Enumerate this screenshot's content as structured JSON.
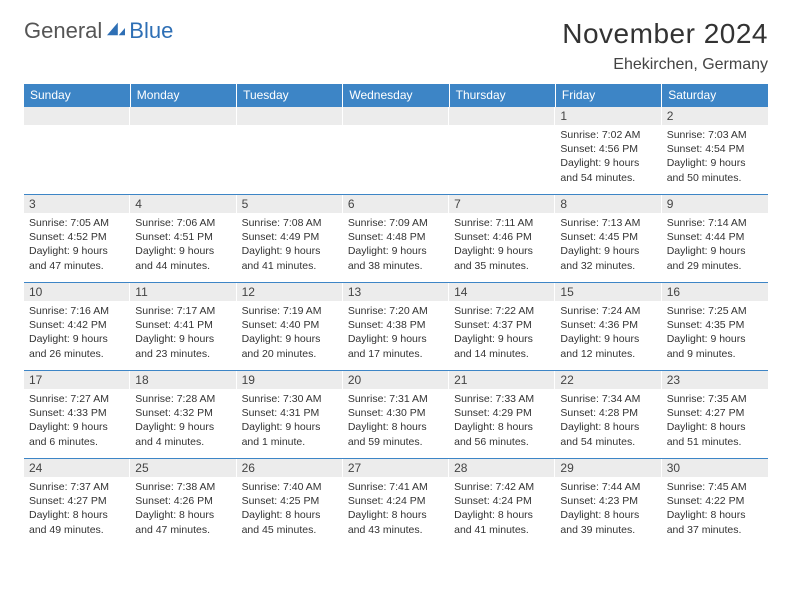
{
  "logo": {
    "general": "General",
    "blue": "Blue"
  },
  "header": {
    "month_year": "November 2024",
    "location": "Ehekirchen, Germany"
  },
  "colors": {
    "header_bg": "#3d85c6",
    "header_text": "#ffffff",
    "daynum_bg": "#ececec",
    "row_border": "#3d85c6",
    "logo_blue": "#2e6fb5",
    "logo_gray": "#555555"
  },
  "day_headers": [
    "Sunday",
    "Monday",
    "Tuesday",
    "Wednesday",
    "Thursday",
    "Friday",
    "Saturday"
  ],
  "weeks": [
    [
      {
        "n": "",
        "l1": "",
        "l2": "",
        "l3": "",
        "l4": ""
      },
      {
        "n": "",
        "l1": "",
        "l2": "",
        "l3": "",
        "l4": ""
      },
      {
        "n": "",
        "l1": "",
        "l2": "",
        "l3": "",
        "l4": ""
      },
      {
        "n": "",
        "l1": "",
        "l2": "",
        "l3": "",
        "l4": ""
      },
      {
        "n": "",
        "l1": "",
        "l2": "",
        "l3": "",
        "l4": ""
      },
      {
        "n": "1",
        "l1": "Sunrise: 7:02 AM",
        "l2": "Sunset: 4:56 PM",
        "l3": "Daylight: 9 hours",
        "l4": "and 54 minutes."
      },
      {
        "n": "2",
        "l1": "Sunrise: 7:03 AM",
        "l2": "Sunset: 4:54 PM",
        "l3": "Daylight: 9 hours",
        "l4": "and 50 minutes."
      }
    ],
    [
      {
        "n": "3",
        "l1": "Sunrise: 7:05 AM",
        "l2": "Sunset: 4:52 PM",
        "l3": "Daylight: 9 hours",
        "l4": "and 47 minutes."
      },
      {
        "n": "4",
        "l1": "Sunrise: 7:06 AM",
        "l2": "Sunset: 4:51 PM",
        "l3": "Daylight: 9 hours",
        "l4": "and 44 minutes."
      },
      {
        "n": "5",
        "l1": "Sunrise: 7:08 AM",
        "l2": "Sunset: 4:49 PM",
        "l3": "Daylight: 9 hours",
        "l4": "and 41 minutes."
      },
      {
        "n": "6",
        "l1": "Sunrise: 7:09 AM",
        "l2": "Sunset: 4:48 PM",
        "l3": "Daylight: 9 hours",
        "l4": "and 38 minutes."
      },
      {
        "n": "7",
        "l1": "Sunrise: 7:11 AM",
        "l2": "Sunset: 4:46 PM",
        "l3": "Daylight: 9 hours",
        "l4": "and 35 minutes."
      },
      {
        "n": "8",
        "l1": "Sunrise: 7:13 AM",
        "l2": "Sunset: 4:45 PM",
        "l3": "Daylight: 9 hours",
        "l4": "and 32 minutes."
      },
      {
        "n": "9",
        "l1": "Sunrise: 7:14 AM",
        "l2": "Sunset: 4:44 PM",
        "l3": "Daylight: 9 hours",
        "l4": "and 29 minutes."
      }
    ],
    [
      {
        "n": "10",
        "l1": "Sunrise: 7:16 AM",
        "l2": "Sunset: 4:42 PM",
        "l3": "Daylight: 9 hours",
        "l4": "and 26 minutes."
      },
      {
        "n": "11",
        "l1": "Sunrise: 7:17 AM",
        "l2": "Sunset: 4:41 PM",
        "l3": "Daylight: 9 hours",
        "l4": "and 23 minutes."
      },
      {
        "n": "12",
        "l1": "Sunrise: 7:19 AM",
        "l2": "Sunset: 4:40 PM",
        "l3": "Daylight: 9 hours",
        "l4": "and 20 minutes."
      },
      {
        "n": "13",
        "l1": "Sunrise: 7:20 AM",
        "l2": "Sunset: 4:38 PM",
        "l3": "Daylight: 9 hours",
        "l4": "and 17 minutes."
      },
      {
        "n": "14",
        "l1": "Sunrise: 7:22 AM",
        "l2": "Sunset: 4:37 PM",
        "l3": "Daylight: 9 hours",
        "l4": "and 14 minutes."
      },
      {
        "n": "15",
        "l1": "Sunrise: 7:24 AM",
        "l2": "Sunset: 4:36 PM",
        "l3": "Daylight: 9 hours",
        "l4": "and 12 minutes."
      },
      {
        "n": "16",
        "l1": "Sunrise: 7:25 AM",
        "l2": "Sunset: 4:35 PM",
        "l3": "Daylight: 9 hours",
        "l4": "and 9 minutes."
      }
    ],
    [
      {
        "n": "17",
        "l1": "Sunrise: 7:27 AM",
        "l2": "Sunset: 4:33 PM",
        "l3": "Daylight: 9 hours",
        "l4": "and 6 minutes."
      },
      {
        "n": "18",
        "l1": "Sunrise: 7:28 AM",
        "l2": "Sunset: 4:32 PM",
        "l3": "Daylight: 9 hours",
        "l4": "and 4 minutes."
      },
      {
        "n": "19",
        "l1": "Sunrise: 7:30 AM",
        "l2": "Sunset: 4:31 PM",
        "l3": "Daylight: 9 hours",
        "l4": "and 1 minute."
      },
      {
        "n": "20",
        "l1": "Sunrise: 7:31 AM",
        "l2": "Sunset: 4:30 PM",
        "l3": "Daylight: 8 hours",
        "l4": "and 59 minutes."
      },
      {
        "n": "21",
        "l1": "Sunrise: 7:33 AM",
        "l2": "Sunset: 4:29 PM",
        "l3": "Daylight: 8 hours",
        "l4": "and 56 minutes."
      },
      {
        "n": "22",
        "l1": "Sunrise: 7:34 AM",
        "l2": "Sunset: 4:28 PM",
        "l3": "Daylight: 8 hours",
        "l4": "and 54 minutes."
      },
      {
        "n": "23",
        "l1": "Sunrise: 7:35 AM",
        "l2": "Sunset: 4:27 PM",
        "l3": "Daylight: 8 hours",
        "l4": "and 51 minutes."
      }
    ],
    [
      {
        "n": "24",
        "l1": "Sunrise: 7:37 AM",
        "l2": "Sunset: 4:27 PM",
        "l3": "Daylight: 8 hours",
        "l4": "and 49 minutes."
      },
      {
        "n": "25",
        "l1": "Sunrise: 7:38 AM",
        "l2": "Sunset: 4:26 PM",
        "l3": "Daylight: 8 hours",
        "l4": "and 47 minutes."
      },
      {
        "n": "26",
        "l1": "Sunrise: 7:40 AM",
        "l2": "Sunset: 4:25 PM",
        "l3": "Daylight: 8 hours",
        "l4": "and 45 minutes."
      },
      {
        "n": "27",
        "l1": "Sunrise: 7:41 AM",
        "l2": "Sunset: 4:24 PM",
        "l3": "Daylight: 8 hours",
        "l4": "and 43 minutes."
      },
      {
        "n": "28",
        "l1": "Sunrise: 7:42 AM",
        "l2": "Sunset: 4:24 PM",
        "l3": "Daylight: 8 hours",
        "l4": "and 41 minutes."
      },
      {
        "n": "29",
        "l1": "Sunrise: 7:44 AM",
        "l2": "Sunset: 4:23 PM",
        "l3": "Daylight: 8 hours",
        "l4": "and 39 minutes."
      },
      {
        "n": "30",
        "l1": "Sunrise: 7:45 AM",
        "l2": "Sunset: 4:22 PM",
        "l3": "Daylight: 8 hours",
        "l4": "and 37 minutes."
      }
    ]
  ]
}
